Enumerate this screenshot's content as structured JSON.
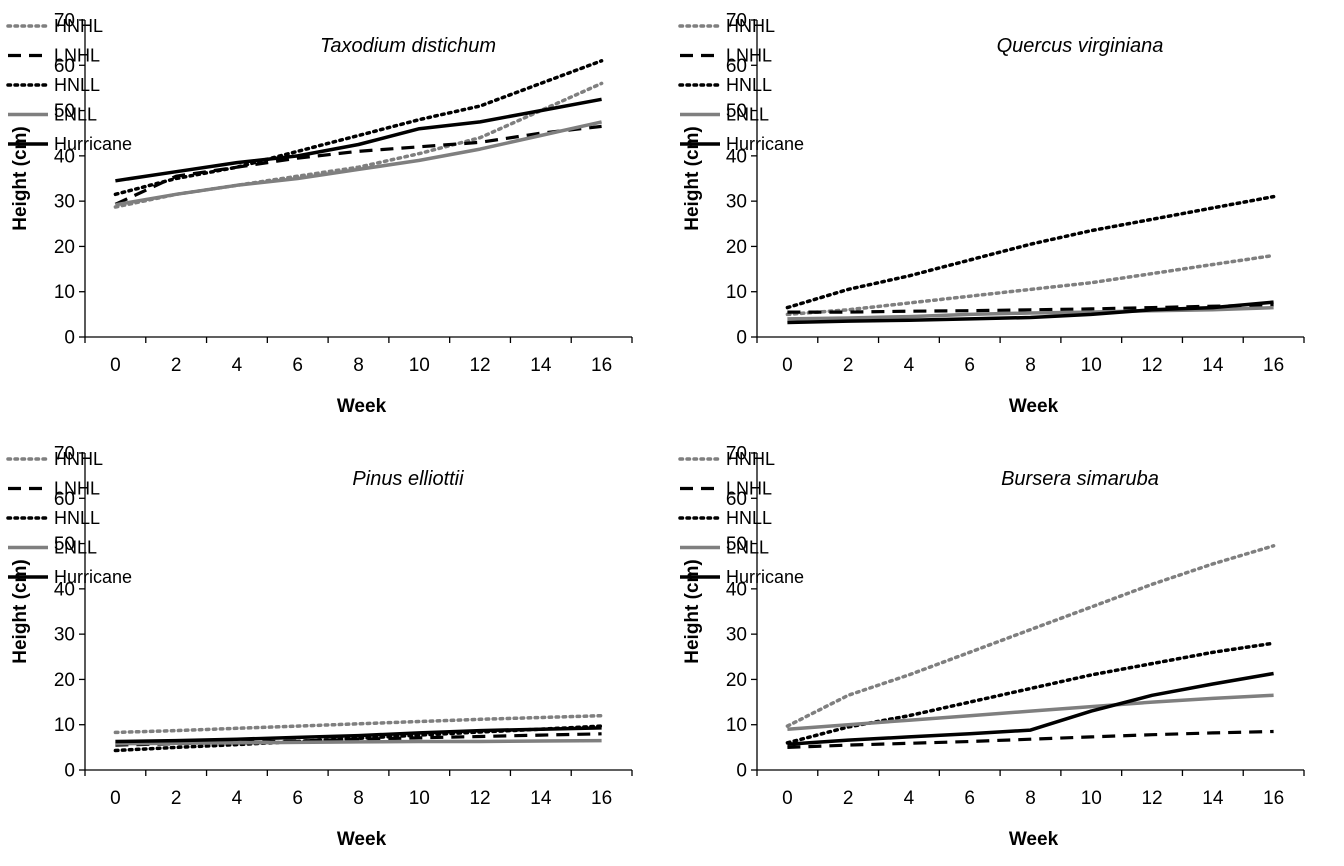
{
  "chart_data": [
    {
      "type": "line",
      "title": "Taxodium distichum",
      "xlabel": "Week",
      "ylabel": "Height (cm)",
      "x": [
        0,
        2,
        4,
        6,
        8,
        10,
        12,
        14,
        16
      ],
      "xlim": [
        -1,
        17
      ],
      "ylim": [
        0,
        70
      ],
      "yticks": [
        0,
        10,
        20,
        30,
        40,
        50,
        60,
        70
      ],
      "grid": false,
      "legend": "top-left",
      "series": [
        {
          "name": "HNHL",
          "style": "gray-dotted",
          "values": [
            28.7,
            31.5,
            33.5,
            35.5,
            37.5,
            40.5,
            44,
            50,
            56
          ]
        },
        {
          "name": "LNHL",
          "style": "black-dashed",
          "values": [
            29.3,
            35.5,
            37.5,
            39.5,
            41,
            42,
            43,
            45,
            46.5
          ]
        },
        {
          "name": "HNLL",
          "style": "black-dotted",
          "values": [
            31.5,
            35,
            37.5,
            41,
            44.5,
            48,
            51,
            56,
            61
          ]
        },
        {
          "name": "LNLL",
          "style": "gray-solid",
          "values": [
            29.2,
            31.5,
            33.5,
            35,
            37,
            39,
            41.5,
            44.5,
            47.5
          ]
        },
        {
          "name": "Hurricane",
          "style": "black-solid",
          "values": [
            34.5,
            36.5,
            38.5,
            40,
            42.5,
            46,
            47.5,
            50,
            52.5
          ]
        }
      ]
    },
    {
      "type": "line",
      "title": "Quercus virginiana",
      "xlabel": "Week",
      "ylabel": "Height (cm)",
      "x": [
        0,
        2,
        4,
        6,
        8,
        10,
        12,
        14,
        16
      ],
      "xlim": [
        -1,
        17
      ],
      "ylim": [
        0,
        70
      ],
      "yticks": [
        0,
        10,
        20,
        30,
        40,
        50,
        60,
        70
      ],
      "grid": false,
      "legend": "top-left",
      "series": [
        {
          "name": "HNHL",
          "style": "gray-dotted",
          "values": [
            5,
            6,
            7.5,
            9,
            10.5,
            12,
            14,
            16,
            18
          ]
        },
        {
          "name": "LNHL",
          "style": "black-dashed",
          "values": [
            5.5,
            5.5,
            5.7,
            5.8,
            6,
            6.2,
            6.5,
            6.8,
            7
          ]
        },
        {
          "name": "HNLL",
          "style": "black-dotted",
          "values": [
            6.5,
            10.5,
            13.5,
            17,
            20.5,
            23.5,
            26,
            28.5,
            31
          ]
        },
        {
          "name": "LNLL",
          "style": "gray-solid",
          "values": [
            4,
            4.2,
            4.5,
            5,
            5.3,
            5.5,
            5.8,
            6,
            6.5
          ]
        },
        {
          "name": "Hurricane",
          "style": "black-solid",
          "values": [
            3.2,
            3.5,
            3.7,
            4,
            4.3,
            5,
            6,
            6.5,
            7.7
          ]
        }
      ]
    },
    {
      "type": "line",
      "title": "Pinus elliottii",
      "xlabel": "Week",
      "ylabel": "Height (cm)",
      "x": [
        0,
        2,
        4,
        6,
        8,
        10,
        12,
        14,
        16
      ],
      "xlim": [
        -1,
        17
      ],
      "ylim": [
        0,
        70
      ],
      "yticks": [
        0,
        10,
        20,
        30,
        40,
        50,
        60,
        70
      ],
      "grid": false,
      "legend": "top-left",
      "series": [
        {
          "name": "HNHL",
          "style": "gray-dotted",
          "values": [
            8.3,
            8.7,
            9.2,
            9.7,
            10.2,
            10.7,
            11.2,
            11.6,
            12
          ]
        },
        {
          "name": "LNHL",
          "style": "black-dashed",
          "values": [
            5.5,
            5.8,
            6.1,
            6.4,
            6.8,
            7.1,
            7.4,
            7.7,
            8
          ]
        },
        {
          "name": "HNLL",
          "style": "black-dotted",
          "values": [
            4.3,
            5,
            5.6,
            6.3,
            7,
            7.7,
            8.4,
            9,
            9.7
          ]
        },
        {
          "name": "LNLL",
          "style": "gray-solid",
          "values": [
            5.8,
            5.9,
            6,
            6.1,
            6.2,
            6.3,
            6.3,
            6.4,
            6.5
          ]
        },
        {
          "name": "Hurricane",
          "style": "black-solid",
          "values": [
            6.3,
            6.5,
            6.8,
            7.2,
            7.6,
            8.2,
            8.7,
            9,
            9.3
          ]
        }
      ]
    },
    {
      "type": "line",
      "title": "Bursera simaruba",
      "xlabel": "Week",
      "ylabel": "Height (cm)",
      "x": [
        0,
        2,
        4,
        6,
        8,
        10,
        12,
        14,
        16
      ],
      "xlim": [
        -1,
        17
      ],
      "ylim": [
        0,
        70
      ],
      "yticks": [
        0,
        10,
        20,
        30,
        40,
        50,
        60,
        70
      ],
      "grid": false,
      "legend": "top-left",
      "series": [
        {
          "name": "HNHL",
          "style": "gray-dotted",
          "values": [
            9.7,
            16.5,
            21,
            26,
            31,
            36,
            41,
            45.5,
            49.5
          ]
        },
        {
          "name": "LNHL",
          "style": "black-dashed",
          "values": [
            5,
            5.5,
            5.9,
            6.3,
            6.8,
            7.3,
            7.8,
            8.2,
            8.5
          ]
        },
        {
          "name": "HNLL",
          "style": "black-dotted",
          "values": [
            6,
            9.5,
            12,
            15,
            18,
            21,
            23.5,
            26,
            28
          ]
        },
        {
          "name": "LNLL",
          "style": "gray-solid",
          "values": [
            9,
            10,
            11,
            12,
            13,
            14,
            15,
            15.8,
            16.5
          ]
        },
        {
          "name": "Hurricane",
          "style": "black-solid",
          "values": [
            5.7,
            6.6,
            7.3,
            8,
            8.8,
            13,
            16.5,
            19,
            21.3
          ]
        }
      ]
    }
  ],
  "styles": {
    "gray-dotted": {
      "color": "#7f7f7f",
      "width": 3.5,
      "dash": "2.5,4.5",
      "cap": "round"
    },
    "black-dashed": {
      "color": "#000000",
      "width": 3.2,
      "dash": "13,8",
      "cap": "butt"
    },
    "black-dotted": {
      "color": "#000000",
      "width": 3.5,
      "dash": "2.5,4.5",
      "cap": "round"
    },
    "gray-solid": {
      "color": "#7f7f7f",
      "width": 3.5,
      "dash": "",
      "cap": "butt"
    },
    "black-solid": {
      "color": "#000000",
      "width": 3.5,
      "dash": "",
      "cap": "butt"
    }
  }
}
